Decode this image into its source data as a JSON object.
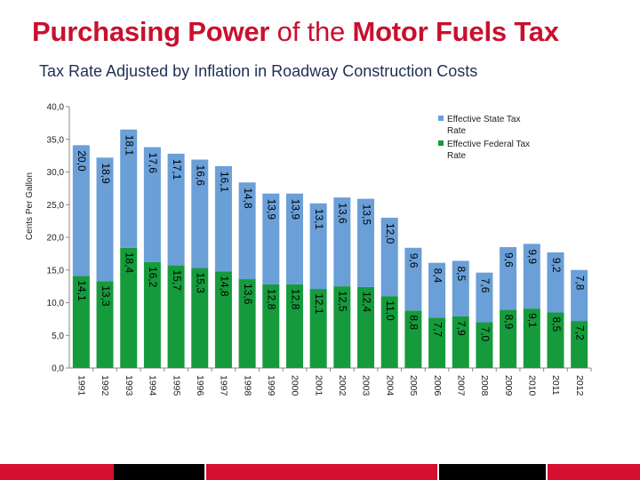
{
  "header": {
    "title_bold": "Purchasing Power",
    "title_mid": " of the ",
    "title_end": "Motor Fuels Tax",
    "subtitle": "Tax Rate Adjusted by Inflation in Roadway Construction Costs"
  },
  "colors": {
    "title": "#c8102e",
    "subtitle": "#1f2f54",
    "state": "#6a9fd8",
    "federal": "#169b3c",
    "footer_red": "#d50f2f",
    "footer_dark": "#000000"
  },
  "chart_data": {
    "type": "bar",
    "stacked": true,
    "ylabel": "Cents Per Gallon",
    "ylim": [
      0,
      40
    ],
    "yticks": [
      "0,0",
      "5,0",
      "10,0",
      "15,0",
      "20,0",
      "25,0",
      "30,0",
      "35,0",
      "40,0"
    ],
    "grid": false,
    "legend_position": "top-right",
    "categories": [
      "1991",
      "1992",
      "1993",
      "1994",
      "1995",
      "1996",
      "1997",
      "1998",
      "1999",
      "2000",
      "2001",
      "2002",
      "2003",
      "2004",
      "2005",
      "2006",
      "2007",
      "2008",
      "2009",
      "2010",
      "2011",
      "2012"
    ],
    "series": [
      {
        "name": "Effective Federal Tax Rate",
        "values": [
          14.1,
          13.3,
          18.4,
          16.2,
          15.7,
          15.3,
          14.8,
          13.6,
          12.8,
          12.8,
          12.1,
          12.5,
          12.4,
          11.0,
          8.8,
          7.7,
          7.9,
          7.0,
          8.9,
          9.1,
          8.5,
          7.2
        ],
        "labels": [
          "14,1",
          "13,3",
          "18,4",
          "16,2",
          "15,7",
          "15,3",
          "14,8",
          "13,6",
          "12,8",
          "12,8",
          "12,1",
          "12,5",
          "12,4",
          "11,0",
          "8,8",
          "7,7",
          "7,9",
          "7,0",
          "8,9",
          "9,1",
          "8,5",
          "7,2"
        ]
      },
      {
        "name": "Effective State Tax Rate",
        "values": [
          20.0,
          18.9,
          18.1,
          17.6,
          17.1,
          16.6,
          16.1,
          14.8,
          13.9,
          13.9,
          13.1,
          13.6,
          13.5,
          12.0,
          9.6,
          8.4,
          8.5,
          7.6,
          9.6,
          9.9,
          9.2,
          7.8
        ],
        "labels": [
          "20,0",
          "18,9",
          "18,1",
          "17,6",
          "17,1",
          "16,6",
          "16,1",
          "14,8",
          "13,9",
          "13,9",
          "13,1",
          "13,6",
          "13,5",
          "12,0",
          "9,6",
          "8,4",
          "8,5",
          "7,6",
          "9,6",
          "9,9",
          "9,2",
          "7,8"
        ]
      }
    ],
    "legend": [
      {
        "line1": "Effective State Tax",
        "line2": "Rate"
      },
      {
        "line1": "Effective Federal Tax",
        "line2": "Rate"
      }
    ]
  }
}
